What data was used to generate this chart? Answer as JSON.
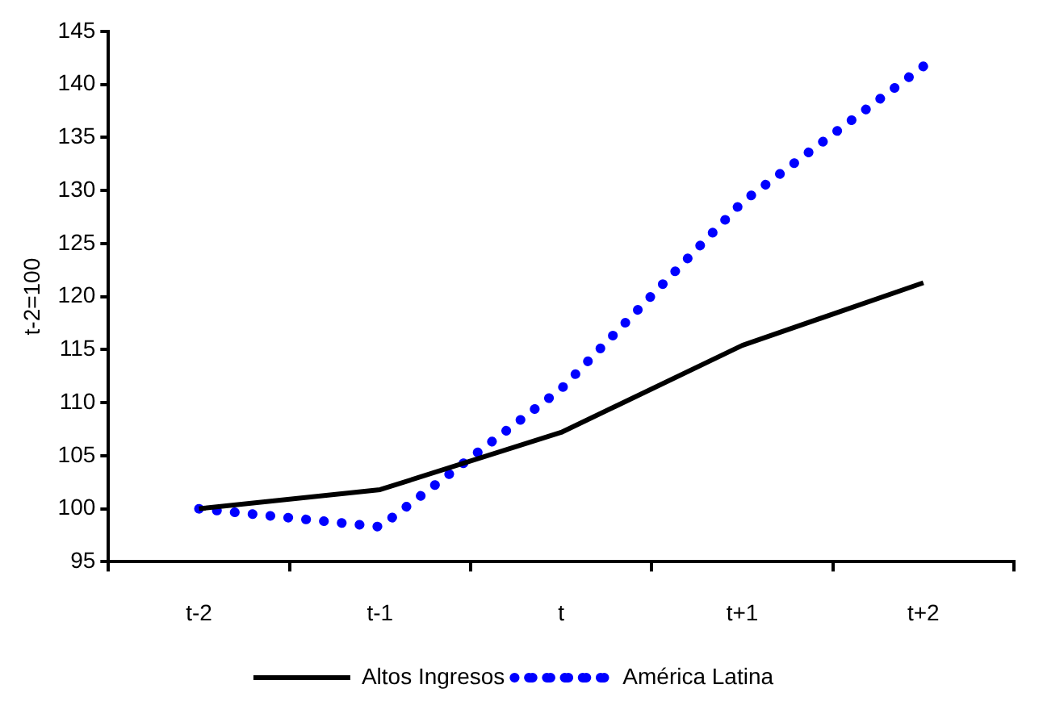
{
  "chart_data": {
    "type": "line",
    "ylabel": "t-2=100",
    "categories": [
      "t-2",
      "t-1",
      "t",
      "t+1",
      "t+2"
    ],
    "series": [
      {
        "name": "Altos Ingresos",
        "color": "#000000",
        "line_style": "solid",
        "values": [
          100,
          101.8,
          107.2,
          115.4,
          121.3
        ]
      },
      {
        "name": "América Latina",
        "color": "#0000ff",
        "line_style": "dotted",
        "values": [
          100,
          98.3,
          111.3,
          128.9,
          141.7
        ]
      }
    ],
    "ylim": [
      95,
      145
    ],
    "yticks": [
      95,
      100,
      105,
      110,
      115,
      120,
      125,
      130,
      135,
      140,
      145
    ],
    "grid": false,
    "legend": "bottom",
    "marker": "none"
  }
}
